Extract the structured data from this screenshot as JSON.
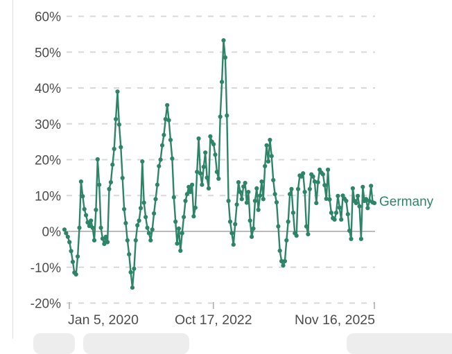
{
  "chart": {
    "legend_label": "Germany",
    "line_color": "#2e8467",
    "grid_color": "#d8d8d8",
    "zero_line_color": "#a3a3a3",
    "axis_text_color": "#4c4c4c"
  },
  "chart_data": {
    "type": "line",
    "title": "",
    "xlabel": "",
    "ylabel": "",
    "ylim": [
      -20,
      60
    ],
    "grid": "dashed horizontal",
    "zero_line": true,
    "legend_position": "right-of-last-point",
    "y_ticks": [
      "60%",
      "50%",
      "40%",
      "30%",
      "20%",
      "10%",
      "0%",
      "-10%",
      "-20%"
    ],
    "y_tick_values": [
      60,
      50,
      40,
      30,
      20,
      10,
      0,
      -10,
      -20
    ],
    "x_ticks": [
      {
        "label": "Jan 5, 2020",
        "pos": 0.009
      },
      {
        "label": "Oct 17, 2022",
        "pos": 0.476
      },
      {
        "label": "Nov 16, 2025",
        "pos": 0.998
      }
    ],
    "series": [
      {
        "name": "Germany",
        "color": "#2e8467",
        "unit": "%",
        "values": [
          0.5,
          -0.5,
          -1.5,
          -3,
          -5.5,
          -8.5,
          -11.5,
          -12,
          -7,
          1,
          13.9,
          9.8,
          6.2,
          4.5,
          2.5,
          1.5,
          3,
          1,
          -2.5,
          6,
          20.1,
          13,
          1,
          -2,
          -3.5,
          -1.5,
          -3,
          11.8,
          13.7,
          18.6,
          23,
          31.3,
          39,
          29.8,
          23.5,
          14.9,
          6.2,
          2.3,
          -2.5,
          -6.4,
          -11.4,
          -15.7,
          -10.4,
          -2.5,
          1.7,
          3,
          6.5,
          19.5,
          8,
          4,
          1,
          -0.5,
          -2.5,
          0.5,
          5,
          9,
          13,
          18.2,
          20,
          24,
          26.9,
          31.3,
          35.2,
          31,
          25.5,
          20.3,
          9.5,
          2.7,
          -3.4,
          0.8,
          -5.4,
          -0.5,
          4,
          8.5,
          10.4,
          12.4,
          11,
          13,
          4.2,
          6.6,
          16.6,
          25.9,
          16.2,
          13,
          18,
          22,
          15,
          12,
          26.5,
          25,
          24.3,
          21.4,
          16.6,
          14.7,
          32,
          41.7,
          53.3,
          48.5,
          32.3,
          8.5,
          2.7,
          -0.5,
          -3.7,
          2,
          7.5,
          13.7,
          11,
          9,
          12.5,
          13.5,
          8,
          11,
          3,
          -1.5,
          0.8,
          8.5,
          12,
          6,
          10,
          13.9,
          9,
          18.2,
          24,
          19.5,
          25.5,
          21,
          14.3,
          10.4,
          8.1,
          1.4,
          -5.4,
          -8.3,
          -9.5,
          -8.3,
          -2.5,
          2.7,
          10.4,
          11.8,
          5.2,
          -0.5,
          -1.2,
          11.8,
          15.6,
          15.3,
          16.2,
          11,
          1.4,
          -0.8,
          11.8,
          15.9,
          15.3,
          13.9,
          7.9,
          13.7,
          17.2,
          16.4,
          15.9,
          12.9,
          9.1,
          17.2,
          8.9,
          5.2,
          3.7,
          3.3,
          5.2,
          9.9,
          6.6,
          3.3,
          10,
          9.1,
          8.5,
          4.8,
          0.2,
          -2.1,
          12,
          8.5,
          7.9,
          9.9,
          7,
          -2.1,
          12.4,
          8.5,
          9,
          6.5,
          8.5,
          12.7,
          8.1,
          7.9
        ]
      }
    ]
  }
}
